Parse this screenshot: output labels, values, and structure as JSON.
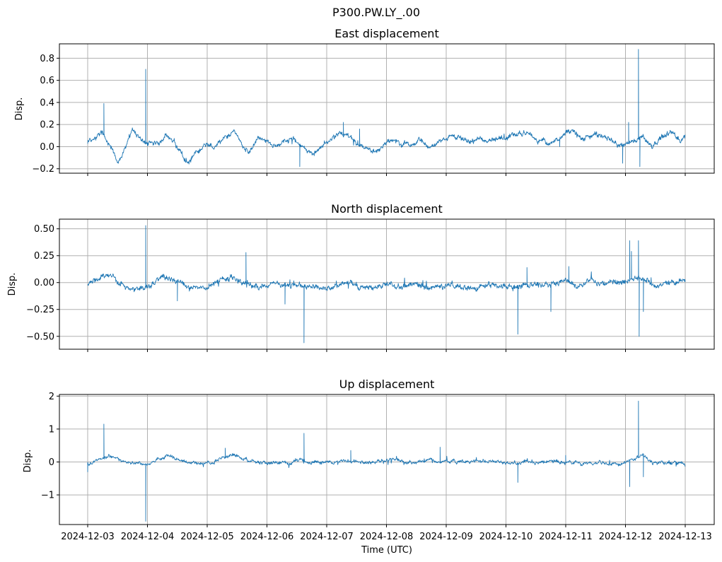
{
  "chart_data": {
    "type": "line",
    "suptitle": "P300.PW.LY_.00",
    "xlabel": "Time (UTC)",
    "x_tick_labels": [
      "2024-12-03",
      "2024-12-04",
      "2024-12-05",
      "2024-12-06",
      "2024-12-07",
      "2024-12-08",
      "2024-12-09",
      "2024-12-10",
      "2024-12-11",
      "2024-12-12",
      "2024-12-13"
    ],
    "x_range_days": [
      0,
      10
    ],
    "panels": [
      {
        "title": "East displacement",
        "ylabel": "Disp.",
        "ylim": [
          -0.24,
          0.93
        ],
        "yticks": [
          -0.2,
          0.0,
          0.2,
          0.4,
          0.6,
          0.8
        ],
        "ytick_labels": [
          "−0.2",
          "0.0",
          "0.2",
          "0.4",
          "0.6",
          "0.8"
        ],
        "baseline": [
          [
            0,
            0.05
          ],
          [
            0.25,
            0.12
          ],
          [
            0.4,
            0.0
          ],
          [
            0.5,
            -0.15
          ],
          [
            0.6,
            -0.05
          ],
          [
            0.75,
            0.15
          ],
          [
            0.9,
            0.05
          ],
          [
            1.0,
            0.02
          ],
          [
            1.2,
            0.03
          ],
          [
            1.3,
            0.1
          ],
          [
            1.45,
            0.05
          ],
          [
            1.6,
            -0.1
          ],
          [
            1.7,
            -0.14
          ],
          [
            1.8,
            -0.05
          ],
          [
            1.95,
            0.03
          ],
          [
            2.1,
            0.0
          ],
          [
            2.3,
            0.08
          ],
          [
            2.45,
            0.15
          ],
          [
            2.6,
            0.0
          ],
          [
            2.7,
            -0.05
          ],
          [
            2.85,
            0.07
          ],
          [
            3.0,
            0.05
          ],
          [
            3.15,
            0.0
          ],
          [
            3.3,
            0.05
          ],
          [
            3.45,
            0.1
          ],
          [
            3.6,
            0.0
          ],
          [
            3.75,
            -0.08
          ],
          [
            3.9,
            0.0
          ],
          [
            4.05,
            0.05
          ],
          [
            4.2,
            0.12
          ],
          [
            4.4,
            0.07
          ],
          [
            4.6,
            0.0
          ],
          [
            4.8,
            -0.05
          ],
          [
            5.0,
            0.05
          ],
          [
            5.2,
            0.06
          ],
          [
            5.4,
            0.02
          ],
          [
            5.55,
            0.06
          ],
          [
            5.7,
            -0.02
          ],
          [
            5.9,
            0.05
          ],
          [
            6.1,
            0.1
          ],
          [
            6.3,
            0.05
          ],
          [
            6.5,
            0.08
          ],
          [
            6.7,
            0.05
          ],
          [
            6.9,
            0.07
          ],
          [
            7.1,
            0.1
          ],
          [
            7.3,
            0.14
          ],
          [
            7.5,
            0.08
          ],
          [
            7.7,
            0.02
          ],
          [
            7.9,
            0.08
          ],
          [
            8.1,
            0.15
          ],
          [
            8.3,
            0.06
          ],
          [
            8.5,
            0.12
          ],
          [
            8.7,
            0.08
          ],
          [
            8.9,
            0.0
          ],
          [
            9.1,
            0.05
          ],
          [
            9.3,
            0.1
          ],
          [
            9.45,
            0.0
          ],
          [
            9.6,
            0.08
          ],
          [
            9.75,
            0.15
          ],
          [
            9.9,
            0.05
          ],
          [
            10.0,
            0.1
          ]
        ],
        "noise": 0.018,
        "spikes": [
          [
            0.27,
            0.39
          ],
          [
            0.97,
            0.7
          ],
          [
            3.55,
            -0.18
          ],
          [
            4.28,
            0.22
          ],
          [
            4.55,
            0.16
          ],
          [
            7.9,
            0.0
          ],
          [
            8.95,
            -0.15
          ],
          [
            9.22,
            0.88
          ],
          [
            9.24,
            -0.18
          ],
          [
            9.05,
            0.22
          ]
        ]
      },
      {
        "title": "North displacement",
        "ylabel": "Disp.",
        "ylim": [
          -0.62,
          0.59
        ],
        "yticks": [
          -0.5,
          -0.25,
          0.0,
          0.25,
          0.5
        ],
        "ytick_labels": [
          "−0.50",
          "−0.25",
          "0.00",
          "0.25",
          "0.50"
        ],
        "baseline": [
          [
            0,
            -0.02
          ],
          [
            0.2,
            0.05
          ],
          [
            0.4,
            0.06
          ],
          [
            0.6,
            -0.02
          ],
          [
            0.8,
            -0.05
          ],
          [
            1.0,
            -0.04
          ],
          [
            1.2,
            0.05
          ],
          [
            1.4,
            0.03
          ],
          [
            1.6,
            -0.02
          ],
          [
            1.8,
            -0.04
          ],
          [
            2.0,
            -0.05
          ],
          [
            2.2,
            0.0
          ],
          [
            2.4,
            0.05
          ],
          [
            2.6,
            0.0
          ],
          [
            2.8,
            -0.05
          ],
          [
            3.0,
            -0.03
          ],
          [
            3.2,
            0.0
          ],
          [
            3.4,
            -0.02
          ],
          [
            3.6,
            -0.05
          ],
          [
            3.8,
            -0.03
          ],
          [
            4.0,
            -0.06
          ],
          [
            4.2,
            -0.02
          ],
          [
            4.4,
            0.0
          ],
          [
            4.6,
            -0.05
          ],
          [
            4.8,
            -0.06
          ],
          [
            5.0,
            -0.03
          ],
          [
            5.2,
            -0.05
          ],
          [
            5.4,
            0.0
          ],
          [
            5.6,
            -0.04
          ],
          [
            5.8,
            -0.03
          ],
          [
            6.0,
            -0.04
          ],
          [
            6.2,
            -0.02
          ],
          [
            6.4,
            -0.05
          ],
          [
            6.6,
            -0.03
          ],
          [
            6.8,
            -0.02
          ],
          [
            7.0,
            -0.04
          ],
          [
            7.2,
            -0.03
          ],
          [
            7.4,
            0.0
          ],
          [
            7.6,
            -0.04
          ],
          [
            7.8,
            -0.01
          ],
          [
            8.0,
            0.02
          ],
          [
            8.2,
            -0.04
          ],
          [
            8.4,
            0.02
          ],
          [
            8.6,
            -0.02
          ],
          [
            8.8,
            0.0
          ],
          [
            9.0,
            0.02
          ],
          [
            9.2,
            0.06
          ],
          [
            9.4,
            0.0
          ],
          [
            9.6,
            -0.02
          ],
          [
            9.8,
            0.02
          ],
          [
            10.0,
            0.0
          ]
        ],
        "noise": 0.02,
        "spikes": [
          [
            0.97,
            0.53
          ],
          [
            1.5,
            -0.17
          ],
          [
            1.7,
            -0.08
          ],
          [
            2.65,
            0.28
          ],
          [
            3.3,
            -0.2
          ],
          [
            3.62,
            -0.56
          ],
          [
            7.2,
            -0.48
          ],
          [
            7.35,
            0.14
          ],
          [
            7.75,
            -0.27
          ],
          [
            8.05,
            0.15
          ],
          [
            9.07,
            0.39
          ],
          [
            9.1,
            0.29
          ],
          [
            9.22,
            0.39
          ],
          [
            9.23,
            -0.5
          ],
          [
            9.3,
            -0.27
          ]
        ]
      },
      {
        "title": "Up displacement",
        "ylabel": "Disp.",
        "ylim": [
          -1.9,
          2.05
        ],
        "yticks": [
          -1,
          0,
          1,
          2
        ],
        "ytick_labels": [
          "−1",
          "0",
          "1",
          "2"
        ],
        "baseline": [
          [
            0,
            -0.05
          ],
          [
            0.25,
            0.12
          ],
          [
            0.4,
            0.18
          ],
          [
            0.55,
            0.05
          ],
          [
            0.7,
            -0.03
          ],
          [
            0.9,
            -0.05
          ],
          [
            1.0,
            -0.05
          ],
          [
            1.2,
            0.1
          ],
          [
            1.35,
            0.18
          ],
          [
            1.5,
            0.05
          ],
          [
            1.7,
            -0.03
          ],
          [
            1.9,
            -0.05
          ],
          [
            2.1,
            0.0
          ],
          [
            2.3,
            0.15
          ],
          [
            2.45,
            0.25
          ],
          [
            2.6,
            0.1
          ],
          [
            2.8,
            0.0
          ],
          [
            3.0,
            -0.05
          ],
          [
            3.2,
            -0.03
          ],
          [
            3.4,
            -0.05
          ],
          [
            3.55,
            0.1
          ],
          [
            3.7,
            0.0
          ],
          [
            3.9,
            -0.05
          ],
          [
            4.1,
            0.0
          ],
          [
            4.3,
            0.05
          ],
          [
            4.5,
            0.0
          ],
          [
            4.7,
            -0.05
          ],
          [
            4.9,
            0.03
          ],
          [
            5.1,
            0.08
          ],
          [
            5.3,
            0.0
          ],
          [
            5.5,
            -0.02
          ],
          [
            5.7,
            0.05
          ],
          [
            5.9,
            0.0
          ],
          [
            6.1,
            0.02
          ],
          [
            6.3,
            0.0
          ],
          [
            6.5,
            0.05
          ],
          [
            6.7,
            0.0
          ],
          [
            6.9,
            0.02
          ],
          [
            7.1,
            -0.05
          ],
          [
            7.3,
            -0.03
          ],
          [
            7.5,
            0.0
          ],
          [
            7.7,
            0.05
          ],
          [
            7.9,
            0.0
          ],
          [
            8.1,
            0.02
          ],
          [
            8.3,
            -0.05
          ],
          [
            8.5,
            -0.02
          ],
          [
            8.7,
            -0.05
          ],
          [
            8.9,
            -0.08
          ],
          [
            9.1,
            0.05
          ],
          [
            9.3,
            0.2
          ],
          [
            9.45,
            0.0
          ],
          [
            9.6,
            -0.05
          ],
          [
            9.8,
            -0.02
          ],
          [
            10.0,
            -0.08
          ]
        ],
        "noise": 0.04,
        "spikes": [
          [
            0.27,
            1.15
          ],
          [
            0.97,
            -1.8
          ],
          [
            0.0,
            -0.3
          ],
          [
            2.3,
            0.42
          ],
          [
            3.62,
            0.87
          ],
          [
            4.4,
            0.35
          ],
          [
            5.9,
            0.45
          ],
          [
            7.2,
            -0.62
          ],
          [
            8.0,
            0.2
          ],
          [
            9.07,
            -0.75
          ],
          [
            9.22,
            1.85
          ],
          [
            9.3,
            -0.45
          ]
        ]
      }
    ]
  }
}
